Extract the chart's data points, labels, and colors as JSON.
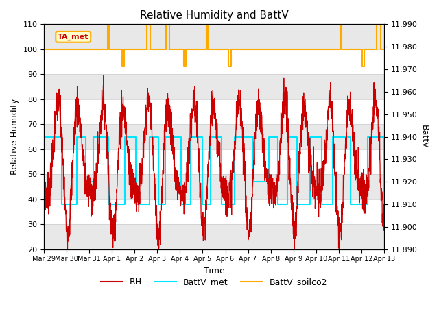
{
  "title": "Relative Humidity and BattV",
  "xlabel": "Time",
  "ylabel_left": "Relative Humidity",
  "ylabel_right": "BattV",
  "annotation_text": "TA_met",
  "ylim_left": [
    20,
    110
  ],
  "ylim_right": [
    11.89,
    11.99
  ],
  "yticks_left": [
    20,
    30,
    40,
    50,
    60,
    70,
    80,
    90,
    100,
    110
  ],
  "yticks_right": [
    11.89,
    11.9,
    11.91,
    11.92,
    11.93,
    11.94,
    11.95,
    11.96,
    11.97,
    11.98,
    11.99
  ],
  "xtick_labels": [
    "Mar 29",
    "Mar 30",
    "Mar 31",
    "Apr 1",
    "Apr 2",
    "Apr 3",
    "Apr 4",
    "Apr 5",
    "Apr 6",
    "Apr 7",
    "Apr 8",
    "Apr 9",
    "Apr 10",
    "Apr 11",
    "Apr 12",
    "Apr 13"
  ],
  "xtick_positions": [
    0,
    1,
    2,
    3,
    4,
    5,
    6,
    7,
    8,
    9,
    10,
    11,
    12,
    13,
    14,
    15
  ],
  "bg_color": "#ffffff",
  "band_color": "#e8e8e8",
  "rh_color": "#cc0000",
  "battv_met_color": "#00e5ff",
  "battv_soilco2_color": "#ffaa00",
  "annot_face": "#ffffcc",
  "annot_edge": "#ffaa00",
  "annot_text_color": "#cc0000"
}
